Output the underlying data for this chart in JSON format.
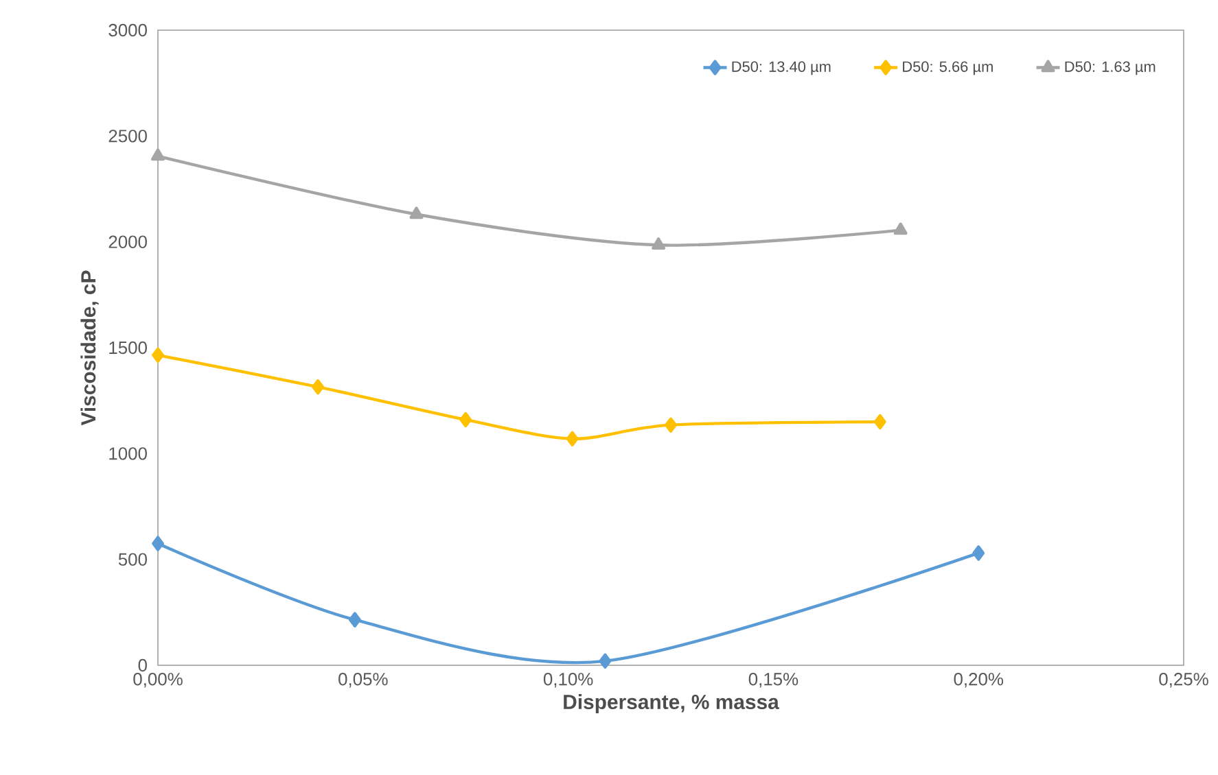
{
  "chart_data": {
    "type": "line",
    "xlabel": "Dispersante, % massa",
    "ylabel": "Viscosidade, cP",
    "xlim": [
      0,
      0.25
    ],
    "ylim": [
      0,
      3000
    ],
    "xticks": [
      {
        "value": 0,
        "label": "0,00%"
      },
      {
        "value": 0.05,
        "label": "0,05%"
      },
      {
        "value": 0.1,
        "label": "0,10%"
      },
      {
        "value": 0.15,
        "label": "0,15%"
      },
      {
        "value": 0.2,
        "label": "0,20%"
      },
      {
        "value": 0.25,
        "label": "0,25%"
      }
    ],
    "yticks": [
      0,
      500,
      1000,
      1500,
      2000,
      2500,
      3000
    ],
    "grid": false,
    "legend": "top right",
    "series": [
      {
        "name": "D50: 13.40 µm",
        "color": "#5b9bd5",
        "marker": "diamond",
        "x": [
          0,
          0.048,
          0.109,
          0.2
        ],
        "values": [
          575,
          215,
          20,
          530
        ]
      },
      {
        "name": "D50: 5.66 µm",
        "color": "#ffc000",
        "marker": "diamond",
        "x": [
          0,
          0.039,
          0.075,
          0.101,
          0.125,
          0.176
        ],
        "values": [
          1465,
          1315,
          1160,
          1070,
          1135,
          1150
        ]
      },
      {
        "name": "D50: 1.63 µm",
        "color": "#a5a5a5",
        "marker": "triangle",
        "x": [
          0,
          0.063,
          0.122,
          0.181
        ],
        "values": [
          2405,
          2130,
          1985,
          2055
        ]
      }
    ]
  }
}
